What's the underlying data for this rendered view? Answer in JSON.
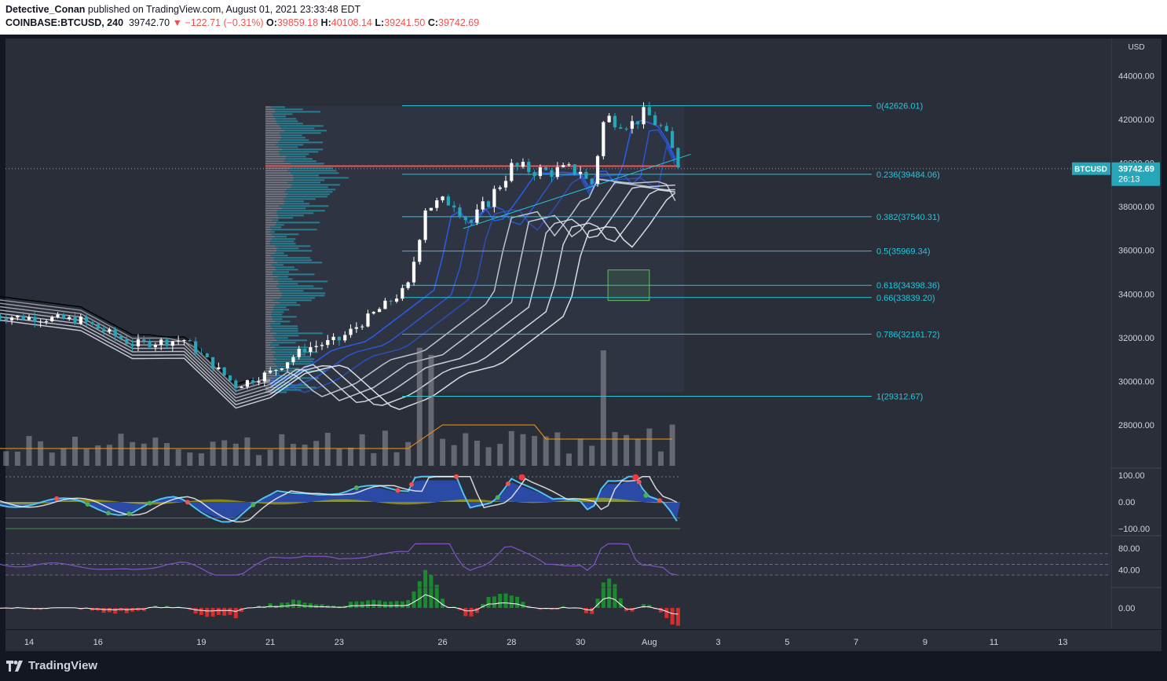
{
  "header": {
    "author": "Detective_Conan",
    "published_text": " published on TradingView.com, August 01, 2021 23:33:48 EDT",
    "symbol": "COINBASE:BTCUSD, 240",
    "last": "39742.70",
    "change_arrow": "▼",
    "change": "−122.71 (−0.31%)",
    "o_label": "O:",
    "o_val": "39859.18",
    "h_label": "H:",
    "h_val": "40108.14",
    "l_label": "L:",
    "l_val": "39241.50",
    "c_label": "C:",
    "c_val": "39742.69"
  },
  "colors": {
    "background": "#2a2e39",
    "up_candle": "#ffffff",
    "down_candle": "#26a6b8",
    "fib_line": "#26c6da",
    "price_line": "#ef5350",
    "ribbon": "#d1d4dc",
    "ema_blue": "#2962ff",
    "rsi": "#7e57c2",
    "hist_up": "#1b8a2e",
    "hist_down": "#d32f2f"
  },
  "footer": {
    "brand": "TradingView",
    "logo_icon": "tradingview-logo-icon"
  },
  "chart_data": {
    "type": "candlestick",
    "currency_label": "USD",
    "price_tag": {
      "symbol": "BTCUSD",
      "price": "39742.69",
      "countdown": "26:13"
    },
    "y_ticks": [
      "44000.00",
      "42000.00",
      "40000.00",
      "38000.00",
      "36000.00",
      "34000.00",
      "32000.00",
      "30000.00",
      "28000.00"
    ],
    "y_tick_values": [
      44000,
      42000,
      40000,
      38000,
      36000,
      34000,
      32000,
      30000,
      28000
    ],
    "ylim": [
      26000,
      45500
    ],
    "x_ticks": [
      "14",
      "16",
      "19",
      "21",
      "23",
      "26",
      "28",
      "30",
      "Aug",
      "3",
      "5",
      "7",
      "9",
      "11",
      "13"
    ],
    "x_tick_days": [
      14,
      16,
      19,
      21,
      23,
      26,
      28,
      30,
      32,
      34,
      36,
      38,
      40,
      42,
      44
    ],
    "fib_levels": [
      {
        "label": "0(42626.01)",
        "value": 42626.01
      },
      {
        "label": "0.236(39484.06)",
        "value": 39484.06
      },
      {
        "label": "0.382(37540.31)",
        "value": 37540.31
      },
      {
        "label": "0.5(35969.34)",
        "value": 35969.34
      },
      {
        "label": "0.618(34398.36)",
        "value": 34398.36
      },
      {
        "label": "0.66(33839.20)",
        "value": 33839.2
      },
      {
        "label": "0.786(32161.72)",
        "value": 32161.72
      },
      {
        "label": "1(29312.67)",
        "value": 29312.67
      }
    ],
    "horizontal_price_line": 39860,
    "demand_zone": {
      "day_start": 30.8,
      "day_end": 32.0,
      "price_low": 33700,
      "price_high": 35100
    },
    "candle_anchors": [
      {
        "day": 13.0,
        "price": 33000
      },
      {
        "day": 15.5,
        "price": 32800
      },
      {
        "day": 17.0,
        "price": 31700
      },
      {
        "day": 18.5,
        "price": 31900
      },
      {
        "day": 20.0,
        "price": 29800
      },
      {
        "day": 21.0,
        "price": 30400
      },
      {
        "day": 22.0,
        "price": 31500
      },
      {
        "day": 23.0,
        "price": 31900
      },
      {
        "day": 24.0,
        "price": 33100
      },
      {
        "day": 25.0,
        "price": 34300
      },
      {
        "day": 25.5,
        "price": 38000
      },
      {
        "day": 26.3,
        "price": 38300
      },
      {
        "day": 26.8,
        "price": 37200
      },
      {
        "day": 27.3,
        "price": 38200
      },
      {
        "day": 28.0,
        "price": 39800
      },
      {
        "day": 29.0,
        "price": 39600
      },
      {
        "day": 30.0,
        "price": 39700
      },
      {
        "day": 30.3,
        "price": 38800
      },
      {
        "day": 30.7,
        "price": 42100
      },
      {
        "day": 31.5,
        "price": 41800
      },
      {
        "day": 31.9,
        "price": 42300
      },
      {
        "day": 32.4,
        "price": 41500
      },
      {
        "day": 32.9,
        "price": 39742
      }
    ],
    "volume_profile_range": [
      29500,
      42600
    ],
    "oscillator_ticks": [
      "100.00",
      "0.00",
      "−100.00"
    ],
    "oscillator_tick_values": [
      100,
      0,
      -100
    ],
    "rsi_ticks": [
      "80.00",
      "40.00"
    ],
    "rsi_tick_values": [
      80,
      40
    ],
    "histogram_ticks": [
      "0.00"
    ],
    "histogram_tick_values": [
      0
    ]
  }
}
